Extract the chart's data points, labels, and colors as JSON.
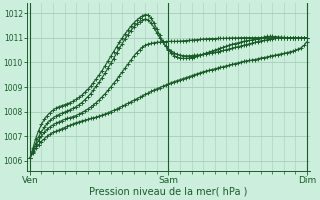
{
  "bg_color": "#cceedd",
  "grid_color": "#aaccbb",
  "line_color": "#1a5c28",
  "xlabel": "Pression niveau de la mer( hPa )",
  "yticks": [
    1006,
    1007,
    1008,
    1009,
    1010,
    1011,
    1012
  ],
  "ylim": [
    1005.6,
    1012.4
  ],
  "xtick_labels": [
    "Ven",
    "Sam",
    "Dim"
  ],
  "xtick_positions": [
    0,
    48,
    96
  ],
  "xlim": [
    -1,
    97
  ],
  "p_line1": [
    1006.1,
    1006.3,
    1006.5,
    1006.65,
    1006.78,
    1006.9,
    1007.0,
    1007.08,
    1007.15,
    1007.2,
    1007.25,
    1007.3,
    1007.35,
    1007.4,
    1007.45,
    1007.5,
    1007.55,
    1007.58,
    1007.62,
    1007.65,
    1007.68,
    1007.72,
    1007.75,
    1007.78,
    1007.82,
    1007.86,
    1007.9,
    1007.95,
    1008.0,
    1008.05,
    1008.1,
    1008.16,
    1008.22,
    1008.28,
    1008.34,
    1008.4,
    1008.46,
    1008.52,
    1008.58,
    1008.64,
    1008.7,
    1008.76,
    1008.82,
    1008.88,
    1008.93,
    1008.98,
    1009.03,
    1009.08,
    1009.13,
    1009.18,
    1009.22,
    1009.26,
    1009.3,
    1009.34,
    1009.38,
    1009.42,
    1009.46,
    1009.5,
    1009.54,
    1009.58,
    1009.62,
    1009.65,
    1009.68,
    1009.71,
    1009.74,
    1009.77,
    1009.8,
    1009.83,
    1009.86,
    1009.89,
    1009.92,
    1009.95,
    1009.98,
    1010.01,
    1010.04,
    1010.06,
    1010.08,
    1010.1,
    1010.12,
    1010.15,
    1010.18,
    1010.2,
    1010.22,
    1010.25,
    1010.28,
    1010.3,
    1010.32,
    1010.35,
    1010.37,
    1010.4,
    1010.43,
    1010.46,
    1010.5,
    1010.55,
    1010.6,
    1010.7,
    1010.85
  ],
  "p_line2": [
    1006.1,
    1006.35,
    1006.6,
    1006.82,
    1007.0,
    1007.15,
    1007.28,
    1007.38,
    1007.46,
    1007.53,
    1007.58,
    1007.63,
    1007.68,
    1007.72,
    1007.76,
    1007.8,
    1007.84,
    1007.9,
    1007.96,
    1008.03,
    1008.1,
    1008.18,
    1008.27,
    1008.37,
    1008.48,
    1008.6,
    1008.72,
    1008.86,
    1009.0,
    1009.15,
    1009.3,
    1009.46,
    1009.62,
    1009.78,
    1009.94,
    1010.1,
    1010.26,
    1010.4,
    1010.52,
    1010.62,
    1010.7,
    1010.75,
    1010.78,
    1010.8,
    1010.82,
    1010.83,
    1010.84,
    1010.85,
    1010.86,
    1010.86,
    1010.86,
    1010.86,
    1010.87,
    1010.88,
    1010.89,
    1010.9,
    1010.91,
    1010.92,
    1010.93,
    1010.94,
    1010.95,
    1010.96,
    1010.97,
    1010.97,
    1010.97,
    1010.98,
    1010.98,
    1010.98,
    1010.99,
    1010.99,
    1011.0,
    1011.0,
    1011.0,
    1011.01,
    1011.01,
    1011.01,
    1011.01,
    1011.01,
    1011.01,
    1011.01,
    1011.01,
    1011.01,
    1011.01,
    1011.01,
    1011.01,
    1011.01,
    1011.01,
    1011.01,
    1011.01,
    1011.01,
    1011.01,
    1011.01,
    1011.01,
    1011.01,
    1011.01,
    1011.01,
    1011.01
  ],
  "p_line3": [
    1006.1,
    1006.4,
    1006.7,
    1006.97,
    1007.18,
    1007.36,
    1007.52,
    1007.64,
    1007.74,
    1007.82,
    1007.88,
    1007.93,
    1007.98,
    1008.03,
    1008.08,
    1008.14,
    1008.2,
    1008.28,
    1008.37,
    1008.48,
    1008.6,
    1008.73,
    1008.88,
    1009.04,
    1009.2,
    1009.38,
    1009.56,
    1009.76,
    1009.96,
    1010.16,
    1010.37,
    1010.57,
    1010.77,
    1010.96,
    1011.13,
    1011.3,
    1011.44,
    1011.56,
    1011.65,
    1011.72,
    1011.77,
    1011.73,
    1011.6,
    1011.42,
    1011.2,
    1011.0,
    1010.82,
    1010.67,
    1010.55,
    1010.45,
    1010.38,
    1010.33,
    1010.3,
    1010.28,
    1010.27,
    1010.27,
    1010.28,
    1010.29,
    1010.3,
    1010.31,
    1010.33,
    1010.35,
    1010.37,
    1010.39,
    1010.41,
    1010.43,
    1010.46,
    1010.49,
    1010.52,
    1010.55,
    1010.58,
    1010.61,
    1010.64,
    1010.67,
    1010.7,
    1010.73,
    1010.76,
    1010.79,
    1010.82,
    1010.85,
    1010.88,
    1010.9,
    1010.92,
    1010.94,
    1010.96,
    1010.98,
    1011.0,
    1011.0,
    1011.0,
    1011.0,
    1011.0,
    1011.0,
    1011.0,
    1011.0,
    1011.0,
    1011.0,
    1011.0
  ],
  "p_line4": [
    1006.1,
    1006.5,
    1006.9,
    1007.22,
    1007.48,
    1007.68,
    1007.84,
    1007.96,
    1008.06,
    1008.14,
    1008.2,
    1008.24,
    1008.28,
    1008.32,
    1008.37,
    1008.43,
    1008.5,
    1008.58,
    1008.67,
    1008.78,
    1008.9,
    1009.03,
    1009.18,
    1009.34,
    1009.5,
    1009.67,
    1009.86,
    1010.05,
    1010.25,
    1010.44,
    1010.63,
    1010.82,
    1011.0,
    1011.17,
    1011.32,
    1011.47,
    1011.6,
    1011.72,
    1011.82,
    1011.9,
    1011.95,
    1011.92,
    1011.8,
    1011.6,
    1011.35,
    1011.1,
    1010.87,
    1010.67,
    1010.5,
    1010.37,
    1010.28,
    1010.22,
    1010.18,
    1010.17,
    1010.17,
    1010.18,
    1010.2,
    1010.23,
    1010.27,
    1010.3,
    1010.34,
    1010.38,
    1010.42,
    1010.46,
    1010.5,
    1010.54,
    1010.58,
    1010.62,
    1010.66,
    1010.7,
    1010.74,
    1010.77,
    1010.8,
    1010.83,
    1010.86,
    1010.88,
    1010.9,
    1010.92,
    1010.94,
    1010.97,
    1011.0,
    1011.03,
    1011.06,
    1011.06,
    1011.06,
    1011.05,
    1011.04,
    1011.03,
    1011.02,
    1011.01,
    1011.0,
    1011.0,
    1011.0,
    1011.0,
    1011.0,
    1011.0,
    1011.0
  ],
  "marker": "+",
  "marker_size": 2.5,
  "linewidth": 0.8
}
